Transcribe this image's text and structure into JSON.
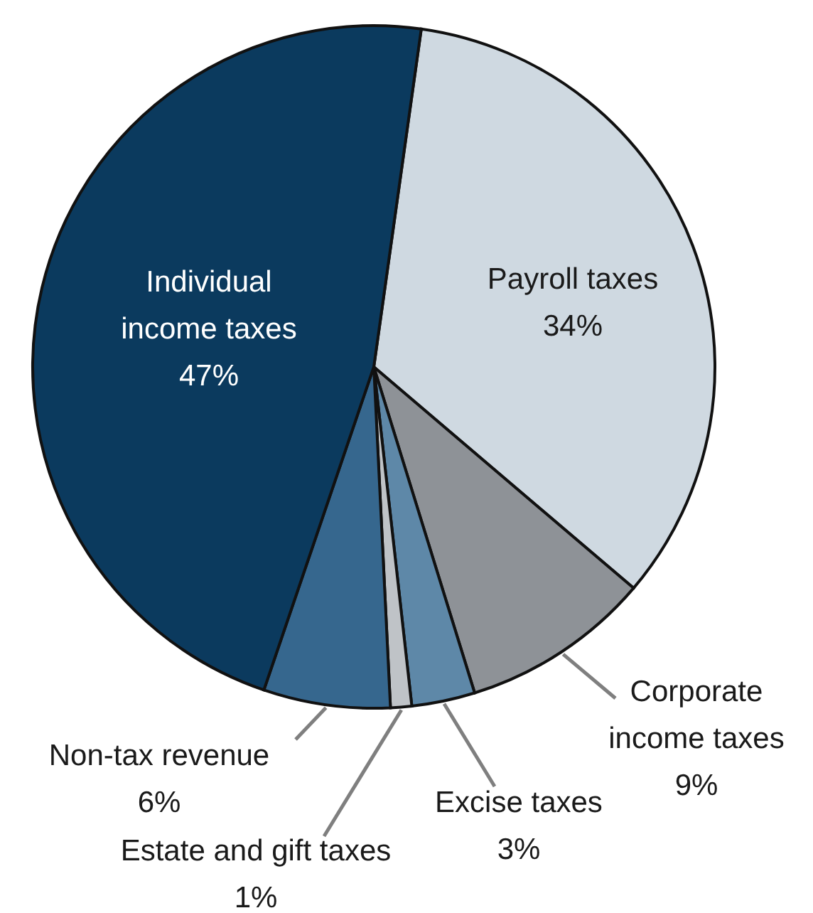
{
  "chart_data": {
    "type": "pie",
    "categories": [
      "Payroll taxes",
      "Corporate income taxes",
      "Excise taxes",
      "Estate and gift taxes",
      "Non-tax revenue",
      "Individual income taxes"
    ],
    "values": [
      34,
      9,
      3,
      1,
      6,
      47
    ],
    "colors": [
      "#cfd9e1",
      "#8e9297",
      "#5e88a8",
      "#bfc3c7",
      "#36678e",
      "#0b3a5e"
    ],
    "value_labels": [
      "34%",
      "9%",
      "3%",
      "1%",
      "6%",
      "47%"
    ]
  }
}
